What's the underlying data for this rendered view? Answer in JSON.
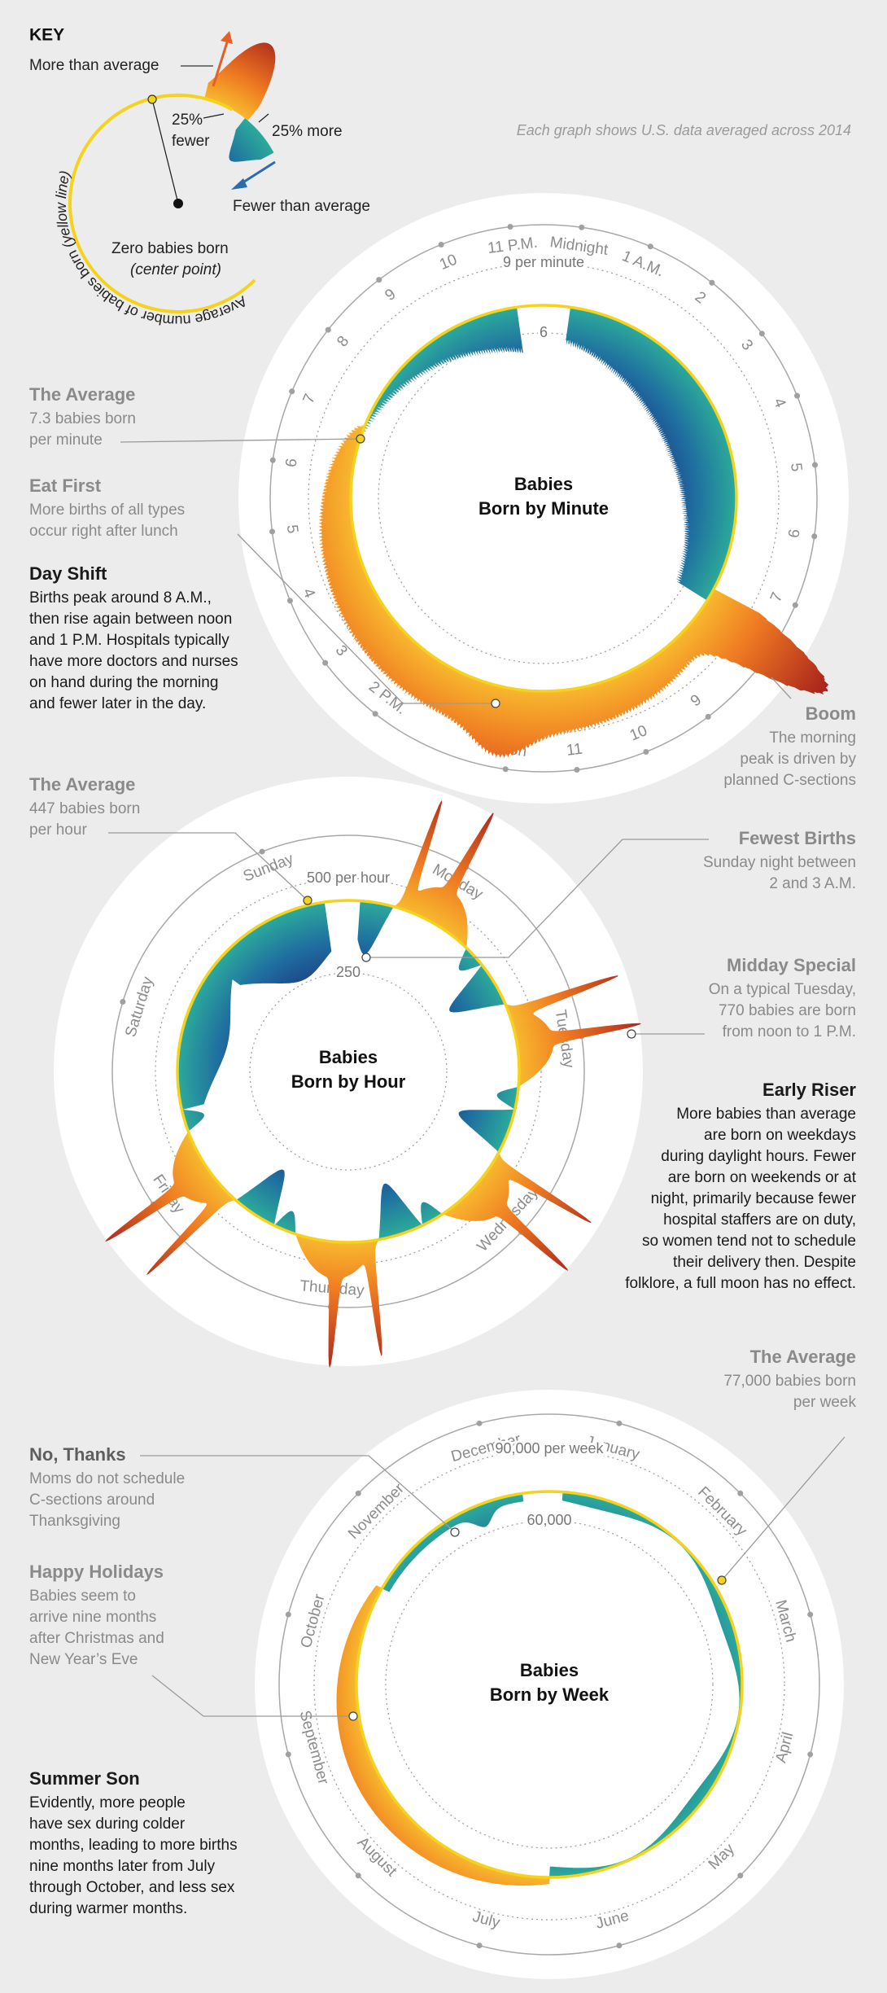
{
  "key": {
    "title": "KEY",
    "more": "More than average",
    "fewer_pct": "25%",
    "fewer_word": "fewer",
    "more_pct": "25% more",
    "fewer_than": "Fewer than average",
    "zero": "Zero babies born",
    "zero_note": "(center point)",
    "arc_label": "Average number of babies born ",
    "arc_note": "(yellow line)"
  },
  "note": "Each graph shows U.S. data averaged across 2014",
  "minute_chart": {
    "title": [
      "Babies",
      "Born by Minute"
    ],
    "scale": [
      "9 per minute",
      "6"
    ],
    "labels": [
      "Midnight",
      "1 A.M.",
      "2",
      "3",
      "4",
      "5",
      "6",
      "7",
      "8",
      "9",
      "10",
      "11",
      "Noon",
      null,
      "2 P.M.",
      "3",
      "4",
      "5",
      "6",
      "7",
      "8",
      "9",
      "10",
      "11 P.M."
    ]
  },
  "hour_chart": {
    "title": [
      "Babies",
      "Born by Hour"
    ],
    "scale": [
      "500 per hour",
      "250"
    ],
    "labels": [
      "Monday",
      "Tuesday",
      "Wednesday",
      "Thursday",
      "Friday",
      "Saturday",
      "Sunday"
    ]
  },
  "week_chart": {
    "title": [
      "Babies",
      "Born by Week"
    ],
    "scale": [
      "90,000 per week",
      "60,000"
    ],
    "labels": [
      "January",
      "February",
      "March",
      "April",
      "May",
      "June",
      "July",
      "August",
      "September",
      "October",
      "November",
      "December"
    ]
  },
  "annotations": [
    {
      "title": "The Average",
      "lines": [
        "7.3 babies born",
        "per minute"
      ]
    },
    {
      "title": "Eat First",
      "lines": [
        "More births of all types",
        "occur right after lunch"
      ]
    },
    {
      "title": "Day Shift",
      "lines": [
        "Births peak around 8 A.M.,",
        "then rise again between noon",
        "and 1 P.M. Hospitals typically",
        "have more doctors and nurses",
        "on hand during the morning",
        "and fewer later in the day."
      ]
    },
    {
      "title": "Boom",
      "lines": [
        "The morning",
        "peak is driven by",
        "planned C-sections"
      ]
    },
    {
      "title": "The Average",
      "lines": [
        "447 babies born",
        "per hour"
      ]
    },
    {
      "title": "Fewest Births",
      "lines": [
        "Sunday night between",
        "2 and 3 A.M."
      ]
    },
    {
      "title": "Midday Special",
      "lines": [
        "On a typical Tuesday,",
        "770 babies are born",
        "from noon to 1 P.M."
      ]
    },
    {
      "title": "Early Riser",
      "lines": [
        "More babies than average",
        "are born on weekdays",
        "during daylight hours. Fewer",
        "are born on weekends or at",
        "night, primarily because fewer",
        "hospital staffers are on duty,",
        "so women tend not to schedule",
        "their delivery then. Despite",
        "folklore, a full moon has no effect."
      ]
    },
    {
      "title": "The Average",
      "lines": [
        "77,000 babies born",
        "per week"
      ]
    },
    {
      "title": "No, Thanks",
      "lines": [
        "Moms do not schedule",
        "C-sections around",
        "Thanksgiving"
      ]
    },
    {
      "title": "Happy Holidays",
      "lines": [
        "Babies seem to",
        "arrive nine months",
        "after Christmas and",
        "New Year’s Eve"
      ]
    },
    {
      "title": "Summer Son",
      "lines": [
        "Evidently, more people",
        "have sex during colder",
        "months, leading to more births",
        "nine months later from July",
        "through October, and less sex",
        "during warmer months."
      ]
    }
  ]
}
